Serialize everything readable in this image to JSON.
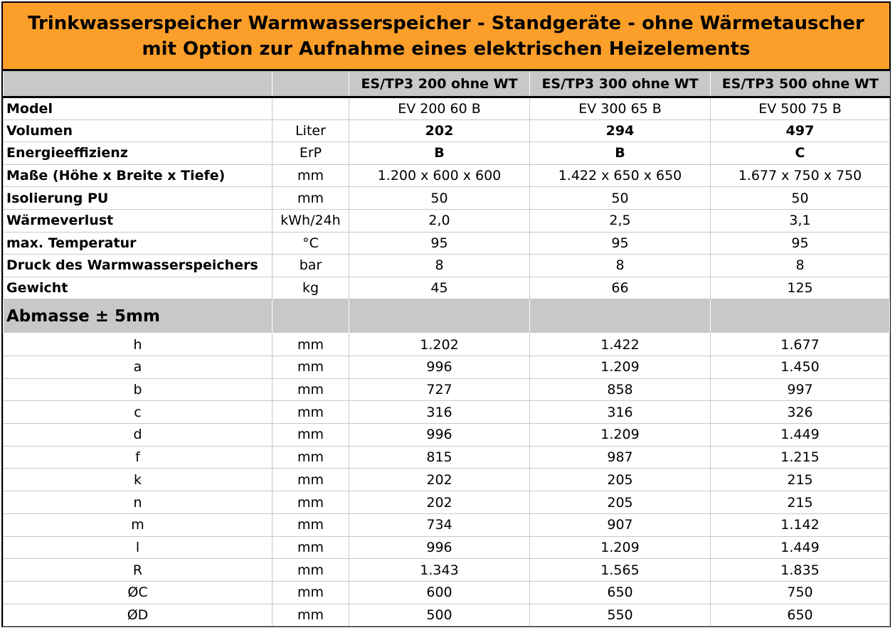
{
  "title": {
    "line1": "Trinkwasserspeicher Warmwasserspeicher - Standgeräte - ohne Wärmetauscher",
    "line2": "mit Option zur Aufnahme eines elektrischen Heizelements"
  },
  "columns": [
    "ES/TP3 200 ohne WT",
    "ES/TP3 300 ohne WT",
    "ES/TP3 500 ohne WT"
  ],
  "spec_rows": [
    {
      "label": "Model",
      "unit": "",
      "values": [
        "EV 200 60 B",
        "EV 300 65 B",
        "EV 500 75 B"
      ],
      "bold": false
    },
    {
      "label": "Volumen",
      "unit": "Liter",
      "values": [
        "202",
        "294",
        "497"
      ],
      "bold": true
    },
    {
      "label": "Energieeffizienz",
      "unit": "ErP",
      "values": [
        "B",
        "B",
        "C"
      ],
      "bold": true
    },
    {
      "label": "Maße (Höhe x Breite x Tiefe)",
      "unit": "mm",
      "values": [
        "1.200 x 600 x 600",
        "1.422 x 650 x 650",
        "1.677 x 750 x 750"
      ],
      "bold": false
    },
    {
      "label": "Isolierung PU",
      "unit": "mm",
      "values": [
        "50",
        "50",
        "50"
      ],
      "bold": false
    },
    {
      "label": "Wärmeverlust",
      "unit": "kWh/24h",
      "values": [
        "2,0",
        "2,5",
        "3,1"
      ],
      "bold": false
    },
    {
      "label": "max. Temperatur",
      "unit": "°C",
      "values": [
        "95",
        "95",
        "95"
      ],
      "bold": false
    },
    {
      "label": "Druck des Warmwasserspeichers",
      "unit": "bar",
      "values": [
        "8",
        "8",
        "8"
      ],
      "bold": false
    },
    {
      "label": "Gewicht",
      "unit": "kg",
      "values": [
        "45",
        "66",
        "125"
      ],
      "bold": false
    }
  ],
  "section_label": "Abmasse ± 5mm",
  "dim_rows": [
    {
      "label": "h",
      "unit": "mm",
      "values": [
        "1.202",
        "1.422",
        "1.677"
      ]
    },
    {
      "label": "a",
      "unit": "mm",
      "values": [
        "996",
        "1.209",
        "1.450"
      ]
    },
    {
      "label": "b",
      "unit": "mm",
      "values": [
        "727",
        "858",
        "997"
      ]
    },
    {
      "label": "c",
      "unit": "mm",
      "values": [
        "316",
        "316",
        "326"
      ]
    },
    {
      "label": "d",
      "unit": "mm",
      "values": [
        "996",
        "1.209",
        "1.449"
      ]
    },
    {
      "label": "f",
      "unit": "mm",
      "values": [
        "815",
        "987",
        "1.215"
      ]
    },
    {
      "label": "k",
      "unit": "mm",
      "values": [
        "202",
        "205",
        "215"
      ]
    },
    {
      "label": "n",
      "unit": "mm",
      "values": [
        "202",
        "205",
        "215"
      ]
    },
    {
      "label": "m",
      "unit": "mm",
      "values": [
        "734",
        "907",
        "1.142"
      ]
    },
    {
      "label": "l",
      "unit": "mm",
      "values": [
        "996",
        "1.209",
        "1.449"
      ]
    },
    {
      "label": "R",
      "unit": "mm",
      "values": [
        "1.343",
        "1.565",
        "1.835"
      ]
    },
    {
      "label": "ØC",
      "unit": "mm",
      "values": [
        "600",
        "650",
        "750"
      ]
    },
    {
      "label": "ØD",
      "unit": "mm",
      "values": [
        "500",
        "550",
        "650"
      ]
    }
  ]
}
